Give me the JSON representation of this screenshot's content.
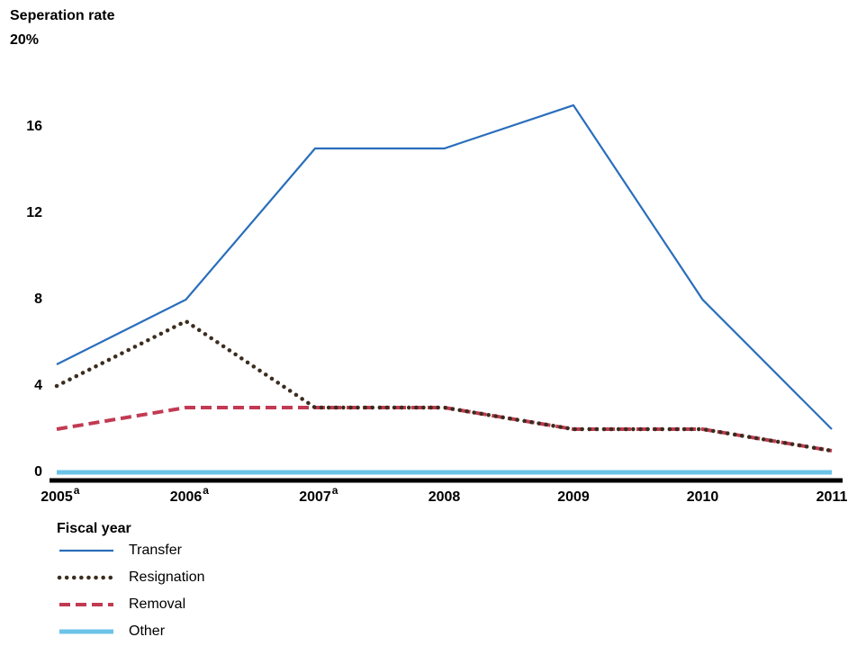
{
  "chart_data": {
    "type": "line",
    "y_label": "Seperation rate",
    "x_label": "Fiscal year",
    "categories": [
      "2005",
      "2006",
      "2007",
      "2008",
      "2009",
      "2010",
      "2011"
    ],
    "category_notes": [
      "a",
      "a",
      "a",
      null,
      null,
      null,
      null
    ],
    "ylim": [
      0,
      20
    ],
    "yticks": [
      0,
      4,
      8,
      12,
      16,
      {
        "value": 20,
        "label": "20%"
      }
    ],
    "grid": false,
    "series": [
      {
        "name": "Transfer",
        "color": "#2a6ebb",
        "style": "solid",
        "values": [
          5,
          8,
          15,
          15,
          17,
          8,
          2
        ]
      },
      {
        "name": "Resignation",
        "color": "#3b2d1f",
        "style": "dotted",
        "values": [
          4,
          7,
          3,
          3,
          2,
          2,
          1
        ]
      },
      {
        "name": "Removal",
        "color": "#c23a52",
        "style": "dashed",
        "values": [
          2,
          3,
          3,
          3,
          2,
          2,
          1
        ]
      },
      {
        "name": "Other",
        "color": "#6cc3e8",
        "style": "thick",
        "values": [
          0,
          0,
          0,
          0,
          0,
          0,
          0
        ]
      }
    ]
  }
}
